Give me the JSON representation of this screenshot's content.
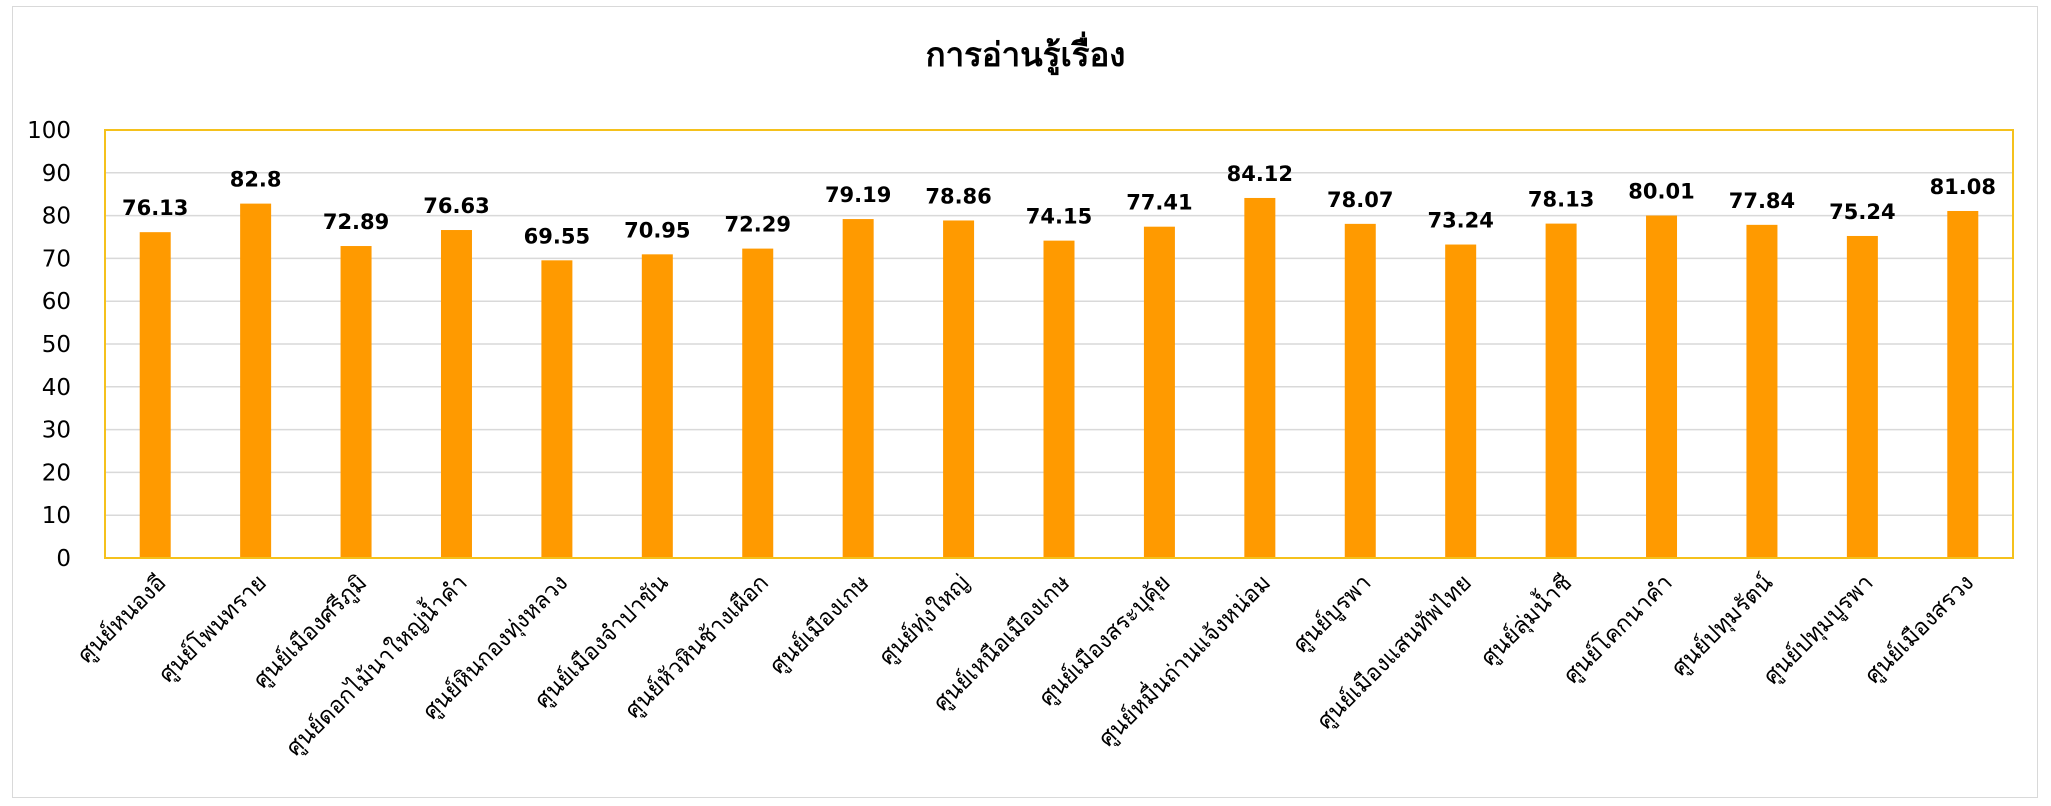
{
  "chart_data": {
    "type": "bar",
    "title": "การอ่านรู้เรื่อง",
    "categories": [
      "ศูนย์หนองอี",
      "ศูนย์โพนทราย",
      "ศูนย์เมืองศรีภูมิ",
      "ศูนย์ดอกไม้นาใหญ่น้ำคำ",
      "ศูนย์หินกองทุ่งหลวง",
      "ศูนย์เมืองจำปาขัน",
      "ศูนย์หัวหินช้างเผือก",
      "ศูนย์เมืองเกษ",
      "ศูนย์ทุ่งใหญ่",
      "ศูนย์เหนือเมืองเกษ",
      "ศูนย์เมืองสระบุคุ้ย",
      "ศูนย์หมื่นถ่านแจ้งหน่อม",
      "ศูนย์บูรพา",
      "ศูนย์เมืองแสนทัพไทย",
      "ศูนย์ลุ่มน้ำชี",
      "ศูนย์โคกนาคำ",
      "ศูนย์ปทุมรัตน์",
      "ศูนย์ปทุมบูรพา",
      "ศูนย์เมืองสรวง"
    ],
    "values": [
      76.13,
      82.8,
      72.89,
      76.63,
      69.55,
      70.95,
      72.29,
      79.19,
      78.86,
      74.15,
      77.41,
      84.12,
      78.07,
      73.24,
      78.13,
      80.01,
      77.84,
      75.24,
      81.08
    ],
    "value_labels": [
      "76.13",
      "82.8",
      "72.89",
      "76.63",
      "69.55",
      "70.95",
      "72.29",
      "79.19",
      "78.86",
      "74.15",
      "77.41",
      "84.12",
      "78.07",
      "73.24",
      "78.13",
      "80.01",
      "77.84",
      "75.24",
      "81.08"
    ],
    "ylim": [
      0,
      100
    ],
    "yticks": [
      "0",
      "10",
      "20",
      "30",
      "40",
      "50",
      "60",
      "70",
      "80",
      "90",
      "100"
    ],
    "grid": true,
    "colors": {
      "bar": "#ff9a00",
      "plot_border": "#f5c11c",
      "grid": "#d9d9d9"
    }
  }
}
